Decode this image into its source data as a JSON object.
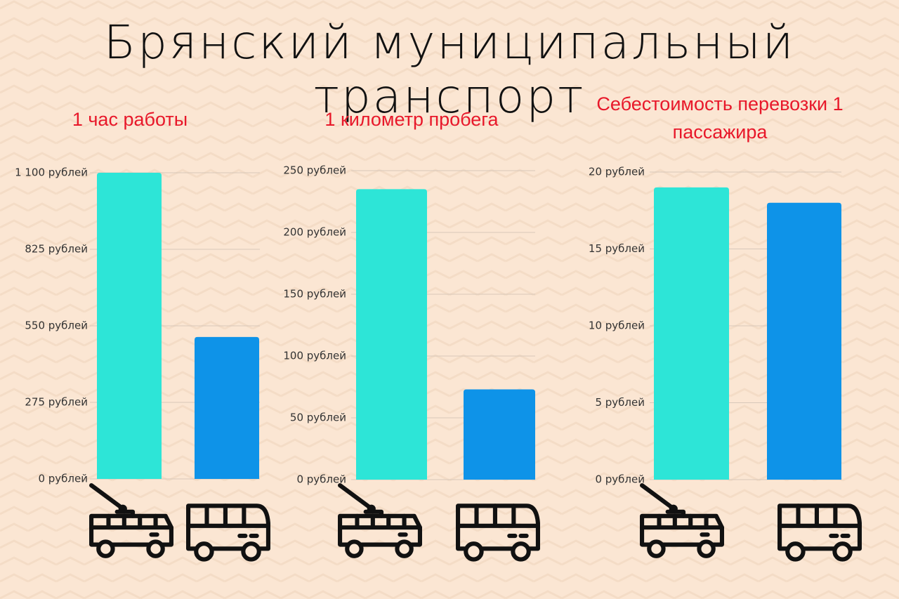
{
  "title": "Брянский муниципальный транспорт",
  "chart_data": [
    {
      "type": "bar",
      "title": "1 час работы",
      "categories": [
        null,
        null
      ],
      "values": [
        1100,
        510
      ],
      "colors": [
        "#2de5d7",
        "#0e93e8"
      ],
      "ylim": [
        0,
        1100
      ],
      "yticks": [
        {
          "value": 0,
          "label": "0 рублей"
        },
        {
          "value": 275,
          "label": "275 рублей"
        },
        {
          "value": 550,
          "label": "550 рублей"
        },
        {
          "value": 825,
          "label": "825 рублей"
        },
        {
          "value": 1100,
          "label": "1 100 рублей"
        }
      ],
      "grid": true
    },
    {
      "type": "bar",
      "title": "1 километр пробега",
      "categories": [
        null,
        null
      ],
      "values": [
        235,
        73
      ],
      "colors": [
        "#2de5d7",
        "#0e93e8"
      ],
      "ylim": [
        0,
        250
      ],
      "yticks": [
        {
          "value": 0,
          "label": "0 рублей"
        },
        {
          "value": 50,
          "label": "50 рублей"
        },
        {
          "value": 100,
          "label": "100 рублей"
        },
        {
          "value": 150,
          "label": "150 рублей"
        },
        {
          "value": 200,
          "label": "200 рублей"
        },
        {
          "value": 250,
          "label": "250 рублей"
        }
      ],
      "grid": true
    },
    {
      "type": "bar",
      "title": "Себестоимость перевозки 1 пассажира",
      "categories": [
        null,
        null
      ],
      "values": [
        19,
        18
      ],
      "colors": [
        "#2de5d7",
        "#0e93e8"
      ],
      "ylim": [
        0,
        20
      ],
      "yticks": [
        {
          "value": 0,
          "label": "0 рублей"
        },
        {
          "value": 5,
          "label": "5 рублей"
        },
        {
          "value": 10,
          "label": "10 рублей"
        },
        {
          "value": 15,
          "label": "15 рублей"
        },
        {
          "value": 20,
          "label": "20 рублей"
        }
      ],
      "grid": true
    }
  ]
}
